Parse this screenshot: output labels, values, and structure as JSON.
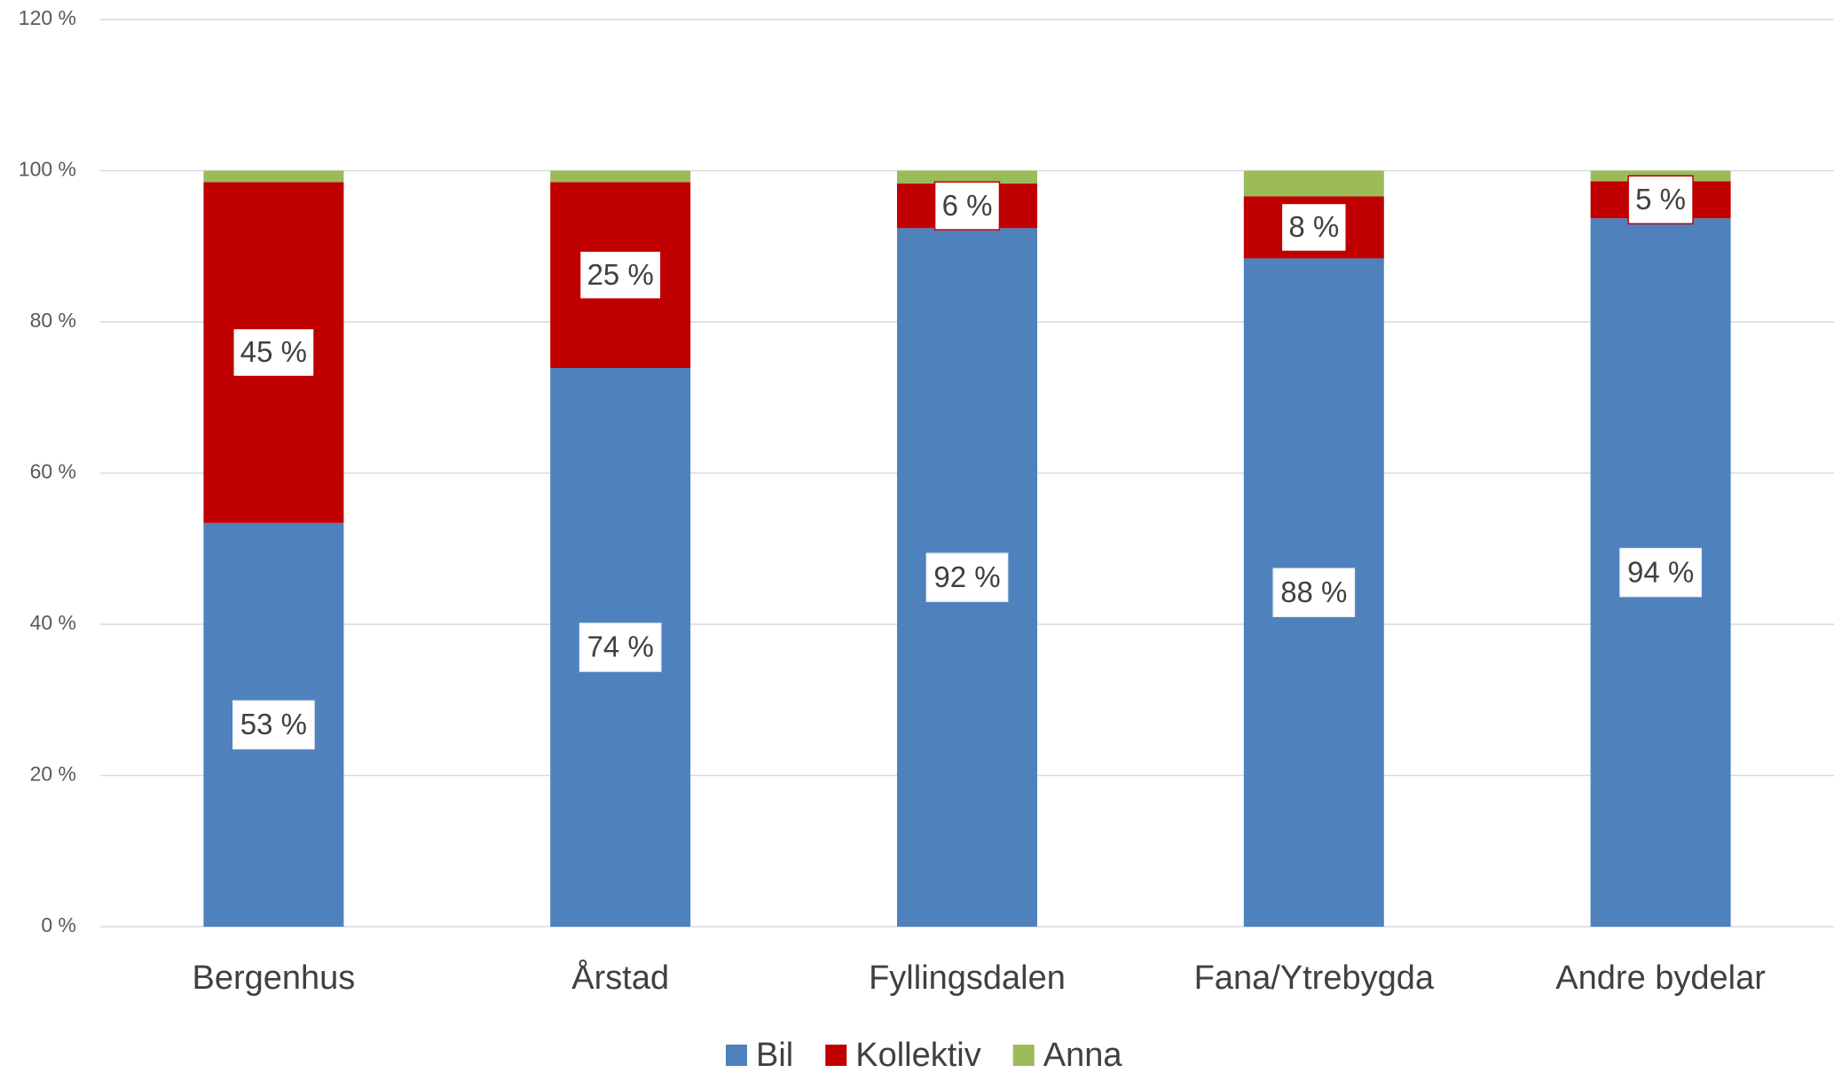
{
  "chart_data": {
    "type": "stacked_bar",
    "categories": [
      "Bergenhus",
      "Årstad",
      "Fyllingsdalen",
      "Fana/Ytrebygda",
      "Andre bydelar"
    ],
    "series": [
      {
        "name": "Bil",
        "color": "#4f81bd",
        "values": [
          53.4,
          73.9,
          92.4,
          88.4,
          93.7
        ],
        "value_labels": [
          "53 %",
          "74 %",
          "92 %",
          "88 %",
          "94 %"
        ]
      },
      {
        "name": "Kollektiv",
        "color": "#c00000",
        "values": [
          45.1,
          24.6,
          5.9,
          8.2,
          4.9
        ],
        "value_labels": [
          "45 %",
          "25 %",
          "6 %",
          "8 %",
          "5 %"
        ]
      },
      {
        "name": "Anna",
        "color": "#9bbb59",
        "values": [
          1.5,
          1.5,
          1.7,
          3.4,
          1.4
        ]
      }
    ],
    "ylim": [
      0,
      120
    ],
    "yticks": [
      {
        "value": 0,
        "label": "0 %"
      },
      {
        "value": 20,
        "label": "20 %"
      },
      {
        "value": 40,
        "label": "40 %"
      },
      {
        "value": 60,
        "label": "60 %"
      },
      {
        "value": 80,
        "label": "80 %"
      },
      {
        "value": 100,
        "label": "100 %"
      },
      {
        "value": 120,
        "label": "120 %"
      }
    ],
    "grid": true,
    "legend": "bottom"
  }
}
